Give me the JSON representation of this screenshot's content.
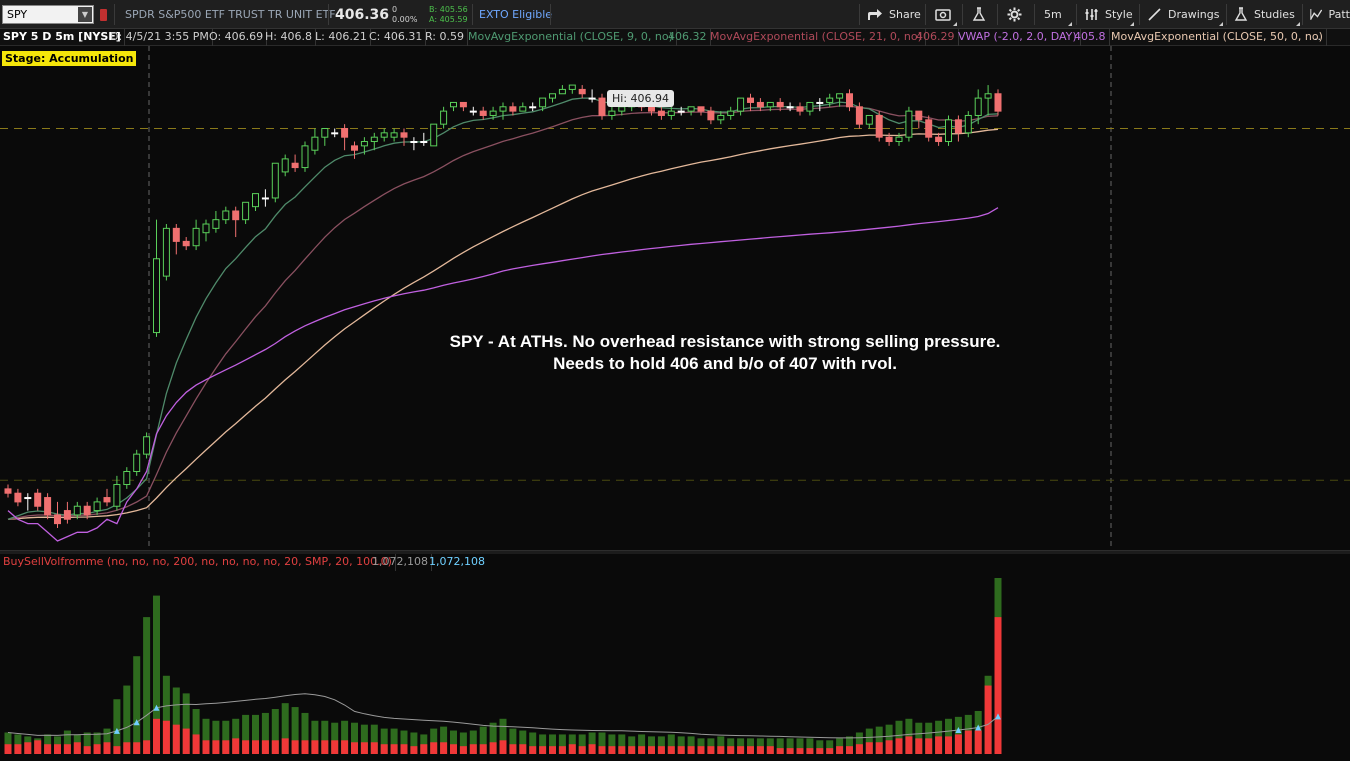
{
  "toolbar": {
    "symbol": "SPY",
    "description": "SPDR S&P500 ETF TRUST TR UNIT ETF",
    "last": "406.36",
    "change": "0",
    "change_pct": "0.00%",
    "bid": "B: 405.56",
    "ask": "A: 405.59",
    "exto": "EXTO Eligible",
    "share": "Share",
    "timeframe": "5m",
    "style": "Style",
    "drawings": "Drawings",
    "studies": "Studies",
    "patterns": "Patt"
  },
  "study_header": {
    "symbol_info": "SPY 5 D 5m [NYSE]",
    "date": "D: 4/5/21 3:55 PM",
    "open": "O: 406.69",
    "high": "H: 406.8",
    "low": "L: 406.21",
    "close": "C: 406.31",
    "range": "R: 0.59",
    "ema9": "MovAvgExponential (CLOSE, 9, 0, no)",
    "ema9_val": "406.32",
    "ema21": "MovAvgExponential (CLOSE, 21, 0, no)",
    "ema21_val": "406.29",
    "vwap": "VWAP (-2.0, 2.0, DAY)",
    "vwap_val": "405.8",
    "ema50": "MovAvgExponential (CLOSE, 50, 0, no)",
    "more": ".."
  },
  "stage": "Stage: Accumulation",
  "hi_label": "Hi: 406.94",
  "annotation": {
    "line1": "SPY - At ATHs. No overhead resistance  with strong selling pressure.",
    "line2": "Needs to hold 406 and b/o of 407 with  rvol."
  },
  "volume": {
    "study": "BuySellVolfromme (no, no, no, 200, no, no, no, no, 20, SMP, 20, 100.0)",
    "val1": "1,072,108",
    "val2": "1,072,108"
  },
  "colors": {
    "up": "#5ad05a",
    "down": "#f07070",
    "ema9": "#4f8a6a",
    "ema21": "#8a5060",
    "ema50": "#e3b89a",
    "vwap": "#c060e0",
    "vol_green": "#2e6b1e",
    "vol_red": "#f03838"
  },
  "chart_data": {
    "type": "candlestick",
    "ylim": [
      396.1,
      407.8
    ],
    "hlines": [
      405.9,
      397.8
    ],
    "candles": [
      [
        397.6,
        397.5,
        397.7,
        397.4
      ],
      [
        397.5,
        397.3,
        397.6,
        397.2
      ],
      [
        397.4,
        397.4,
        397.5,
        397.1
      ],
      [
        397.5,
        397.2,
        397.6,
        397.1
      ],
      [
        397.4,
        397.0,
        397.5,
        396.9
      ],
      [
        397.0,
        396.8,
        397.3,
        396.7
      ],
      [
        397.1,
        396.9,
        397.3,
        396.8
      ],
      [
        397.0,
        397.2,
        397.3,
        396.9
      ],
      [
        397.2,
        397.0,
        397.3,
        396.9
      ],
      [
        397.1,
        397.3,
        397.4,
        397.0
      ],
      [
        397.4,
        397.3,
        397.6,
        397.2
      ],
      [
        397.2,
        397.7,
        397.9,
        397.1
      ],
      [
        397.7,
        398.0,
        398.1,
        397.6
      ],
      [
        398.0,
        398.4,
        398.5,
        397.9
      ],
      [
        398.4,
        398.8,
        398.9,
        398.3
      ],
      [
        401.2,
        402.9,
        403.8,
        401.1
      ],
      [
        402.5,
        403.6,
        403.7,
        402.4
      ],
      [
        403.6,
        403.3,
        403.7,
        403.0
      ],
      [
        403.3,
        403.2,
        403.4,
        403.1
      ],
      [
        403.2,
        403.6,
        403.8,
        403.1
      ],
      [
        403.5,
        403.7,
        403.8,
        403.3
      ],
      [
        403.6,
        403.8,
        404.0,
        403.5
      ],
      [
        403.8,
        404.0,
        404.1,
        403.7
      ],
      [
        404.0,
        403.8,
        404.1,
        403.4
      ],
      [
        403.8,
        404.2,
        404.2,
        403.7
      ],
      [
        404.1,
        404.4,
        404.4,
        404.0
      ],
      [
        404.3,
        404.3,
        404.5,
        404.1
      ],
      [
        404.3,
        405.1,
        405.1,
        404.2
      ],
      [
        404.9,
        405.2,
        405.3,
        404.8
      ],
      [
        405.1,
        405.0,
        405.3,
        404.9
      ],
      [
        405.0,
        405.5,
        405.6,
        404.9
      ],
      [
        405.4,
        405.7,
        405.9,
        405.3
      ],
      [
        405.7,
        405.9,
        405.9,
        405.5
      ],
      [
        405.8,
        405.8,
        405.9,
        405.7
      ],
      [
        405.9,
        405.7,
        406.0,
        405.4
      ],
      [
        405.5,
        405.4,
        405.6,
        405.2
      ],
      [
        405.5,
        405.6,
        405.7,
        405.3
      ],
      [
        405.6,
        405.7,
        405.8,
        405.4
      ],
      [
        405.7,
        405.8,
        405.9,
        405.6
      ],
      [
        405.7,
        405.8,
        405.9,
        405.6
      ],
      [
        405.8,
        405.7,
        405.9,
        405.5
      ],
      [
        405.6,
        405.6,
        405.7,
        405.4
      ],
      [
        405.6,
        405.6,
        405.8,
        405.5
      ],
      [
        405.5,
        406.0,
        406.0,
        405.5
      ],
      [
        406.0,
        406.3,
        406.4,
        405.9
      ],
      [
        406.4,
        406.5,
        406.5,
        406.3
      ],
      [
        406.5,
        406.4,
        406.5,
        406.3
      ],
      [
        406.3,
        406.3,
        406.4,
        406.2
      ],
      [
        406.3,
        406.2,
        406.4,
        406.1
      ],
      [
        406.2,
        406.3,
        406.4,
        406.1
      ],
      [
        406.3,
        406.4,
        406.5,
        406.1
      ],
      [
        406.4,
        406.3,
        406.5,
        406.2
      ],
      [
        406.3,
        406.4,
        406.5,
        406.3
      ],
      [
        406.4,
        406.4,
        406.5,
        406.3
      ],
      [
        406.4,
        406.6,
        406.6,
        406.3
      ],
      [
        406.6,
        406.7,
        406.7,
        406.5
      ],
      [
        406.7,
        406.8,
        406.9,
        406.7
      ],
      [
        406.8,
        406.9,
        406.9,
        406.7
      ],
      [
        406.8,
        406.7,
        406.9,
        406.6
      ],
      [
        406.6,
        406.6,
        406.8,
        406.5
      ],
      [
        406.6,
        406.2,
        406.7,
        406.1
      ],
      [
        406.2,
        406.3,
        406.4,
        406.1
      ],
      [
        406.3,
        406.4,
        406.5,
        406.2
      ],
      [
        406.4,
        406.5,
        406.5,
        406.3
      ],
      [
        406.5,
        406.4,
        406.6,
        406.3
      ],
      [
        406.4,
        406.3,
        406.5,
        406.2
      ],
      [
        406.3,
        406.2,
        406.4,
        406.1
      ],
      [
        406.2,
        406.3,
        406.4,
        406.1
      ],
      [
        406.3,
        406.3,
        406.4,
        406.2
      ],
      [
        406.3,
        406.4,
        406.4,
        406.2
      ],
      [
        406.4,
        406.3,
        406.4,
        406.2
      ],
      [
        406.3,
        406.1,
        406.4,
        406.0
      ],
      [
        406.1,
        406.2,
        406.3,
        406.0
      ],
      [
        406.2,
        406.3,
        406.4,
        406.1
      ],
      [
        406.3,
        406.6,
        406.6,
        406.2
      ],
      [
        406.6,
        406.5,
        406.7,
        406.3
      ],
      [
        406.5,
        406.4,
        406.6,
        406.3
      ],
      [
        406.4,
        406.5,
        406.5,
        406.3
      ],
      [
        406.5,
        406.4,
        406.6,
        406.3
      ],
      [
        406.4,
        406.4,
        406.5,
        406.3
      ],
      [
        406.4,
        406.3,
        406.5,
        406.2
      ],
      [
        406.3,
        406.5,
        406.5,
        406.2
      ],
      [
        406.5,
        406.5,
        406.6,
        406.3
      ],
      [
        406.5,
        406.6,
        406.7,
        406.4
      ],
      [
        406.6,
        406.7,
        406.7,
        406.4
      ],
      [
        406.7,
        406.4,
        406.8,
        406.3
      ],
      [
        406.4,
        406.0,
        406.5,
        405.9
      ],
      [
        406.0,
        406.2,
        406.2,
        405.9
      ],
      [
        406.2,
        405.7,
        406.3,
        405.6
      ],
      [
        405.7,
        405.6,
        405.8,
        405.5
      ],
      [
        405.6,
        405.7,
        405.8,
        405.5
      ],
      [
        405.7,
        406.3,
        406.4,
        405.6
      ],
      [
        406.3,
        406.1,
        406.3,
        405.9
      ],
      [
        406.1,
        405.7,
        406.2,
        405.6
      ],
      [
        405.7,
        405.6,
        405.8,
        405.5
      ],
      [
        405.6,
        406.1,
        406.2,
        405.5
      ],
      [
        406.1,
        405.8,
        406.2,
        405.6
      ],
      [
        405.8,
        406.2,
        406.3,
        405.7
      ],
      [
        406.2,
        406.6,
        406.8,
        406.0
      ],
      [
        406.6,
        406.7,
        406.9,
        406.2
      ],
      [
        406.7,
        406.3,
        406.8,
        406.2
      ]
    ],
    "volume": [
      [
        11,
        5
      ],
      [
        10,
        5
      ],
      [
        9,
        6
      ],
      [
        8,
        7
      ],
      [
        10,
        5
      ],
      [
        9,
        5
      ],
      [
        12,
        5
      ],
      [
        10,
        6
      ],
      [
        11,
        4
      ],
      [
        11,
        5
      ],
      [
        13,
        6
      ],
      [
        28,
        4
      ],
      [
        35,
        6
      ],
      [
        50,
        6
      ],
      [
        70,
        7
      ],
      [
        81,
        18
      ],
      [
        40,
        17
      ],
      [
        34,
        15
      ],
      [
        31,
        13
      ],
      [
        23,
        10
      ],
      [
        18,
        7
      ],
      [
        17,
        7
      ],
      [
        17,
        7
      ],
      [
        18,
        8
      ],
      [
        20,
        7
      ],
      [
        20,
        7
      ],
      [
        21,
        7
      ],
      [
        23,
        7
      ],
      [
        26,
        8
      ],
      [
        24,
        7
      ],
      [
        21,
        7
      ],
      [
        17,
        7
      ],
      [
        17,
        7
      ],
      [
        16,
        7
      ],
      [
        17,
        7
      ],
      [
        16,
        6
      ],
      [
        15,
        6
      ],
      [
        15,
        6
      ],
      [
        13,
        5
      ],
      [
        13,
        5
      ],
      [
        12,
        5
      ],
      [
        11,
        4
      ],
      [
        10,
        5
      ],
      [
        13,
        6
      ],
      [
        14,
        6
      ],
      [
        12,
        5
      ],
      [
        11,
        4
      ],
      [
        12,
        5
      ],
      [
        14,
        5
      ],
      [
        16,
        6
      ],
      [
        18,
        7
      ],
      [
        13,
        5
      ],
      [
        12,
        5
      ],
      [
        11,
        4
      ],
      [
        10,
        4
      ],
      [
        10,
        4
      ],
      [
        10,
        4
      ],
      [
        10,
        5
      ],
      [
        10,
        4
      ],
      [
        11,
        5
      ],
      [
        11,
        4
      ],
      [
        10,
        4
      ],
      [
        10,
        4
      ],
      [
        9,
        4
      ],
      [
        10,
        4
      ],
      [
        9,
        4
      ],
      [
        9,
        4
      ],
      [
        10,
        4
      ],
      [
        9,
        4
      ],
      [
        9,
        4
      ],
      [
        8,
        4
      ],
      [
        8,
        4
      ],
      [
        9,
        4
      ],
      [
        8,
        4
      ],
      [
        8,
        4
      ],
      [
        8,
        4
      ],
      [
        8,
        4
      ],
      [
        8,
        4
      ],
      [
        8,
        3
      ],
      [
        8,
        3
      ],
      [
        8,
        3
      ],
      [
        8,
        3
      ],
      [
        7,
        3
      ],
      [
        7,
        3
      ],
      [
        8,
        4
      ],
      [
        9,
        4
      ],
      [
        11,
        5
      ],
      [
        13,
        6
      ],
      [
        14,
        6
      ],
      [
        15,
        7
      ],
      [
        17,
        8
      ],
      [
        18,
        9
      ],
      [
        16,
        8
      ],
      [
        16,
        8
      ],
      [
        17,
        9
      ],
      [
        18,
        9
      ],
      [
        19,
        10
      ],
      [
        20,
        12
      ],
      [
        22,
        12
      ],
      [
        40,
        35
      ],
      [
        90,
        70
      ]
    ]
  }
}
